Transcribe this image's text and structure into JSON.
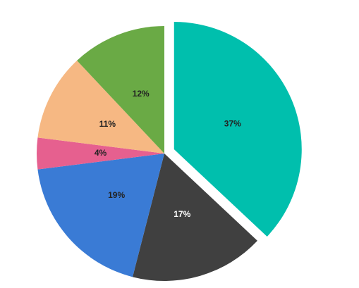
{
  "chart_data": {
    "type": "pie",
    "values": [
      37,
      17,
      19,
      4,
      11,
      12
    ],
    "value_labels": [
      "37%",
      "17%",
      "19%",
      "4%",
      "11%",
      "12%"
    ],
    "colors": [
      "#00bfad",
      "#404040",
      "#3a7bd5",
      "#e6608f",
      "#f6b883",
      "#6aaa45"
    ],
    "exploded": [
      0
    ]
  }
}
